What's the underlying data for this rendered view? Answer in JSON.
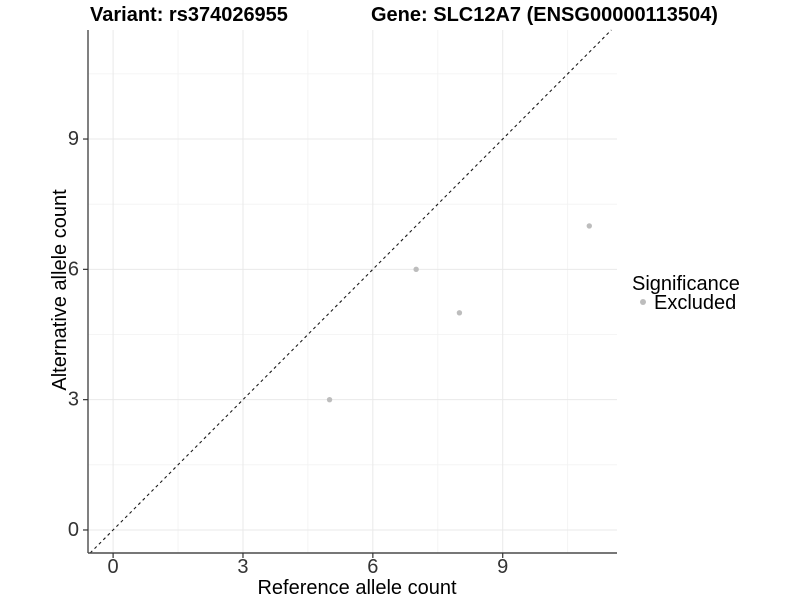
{
  "chart_data": {
    "type": "scatter",
    "title_left": "Variant: rs374026955",
    "title_right": "Gene: SLC12A7 (ENSG00000113504)",
    "xlabel": "Reference allele count",
    "ylabel": "Alternative allele count",
    "x_ticks": [
      0,
      3,
      6,
      9
    ],
    "y_ticks": [
      0,
      3,
      6,
      9
    ],
    "x_minor_ticks": [
      1.5,
      4.5,
      7.5,
      10.5
    ],
    "y_minor_ticks": [
      1.5,
      4.5,
      7.5,
      10.5
    ],
    "xlim": [
      -0.58,
      11.64
    ],
    "ylim": [
      -0.53,
      11.51
    ],
    "grid": true,
    "points": [
      {
        "x": 5,
        "y": 3,
        "significance": "Excluded"
      },
      {
        "x": 7,
        "y": 6,
        "significance": "Excluded"
      },
      {
        "x": 8,
        "y": 5,
        "significance": "Excluded"
      },
      {
        "x": 11,
        "y": 7,
        "significance": "Excluded"
      }
    ],
    "identity_line": {
      "style": "dashed",
      "slope": 1,
      "intercept": 0
    },
    "legend": {
      "title": "Significance",
      "position": "right",
      "items": [
        {
          "label": "Excluded",
          "color": "#bdbdbd"
        }
      ]
    },
    "colors": {
      "point": "#bdbdbd",
      "grid_major": "#e9e9e9",
      "grid_minor": "#f2f2f2",
      "axis_line": "#4a4a4a",
      "tick_mark": "#333333",
      "dashed_line": "#1a1a1a",
      "background": "#ffffff"
    }
  }
}
